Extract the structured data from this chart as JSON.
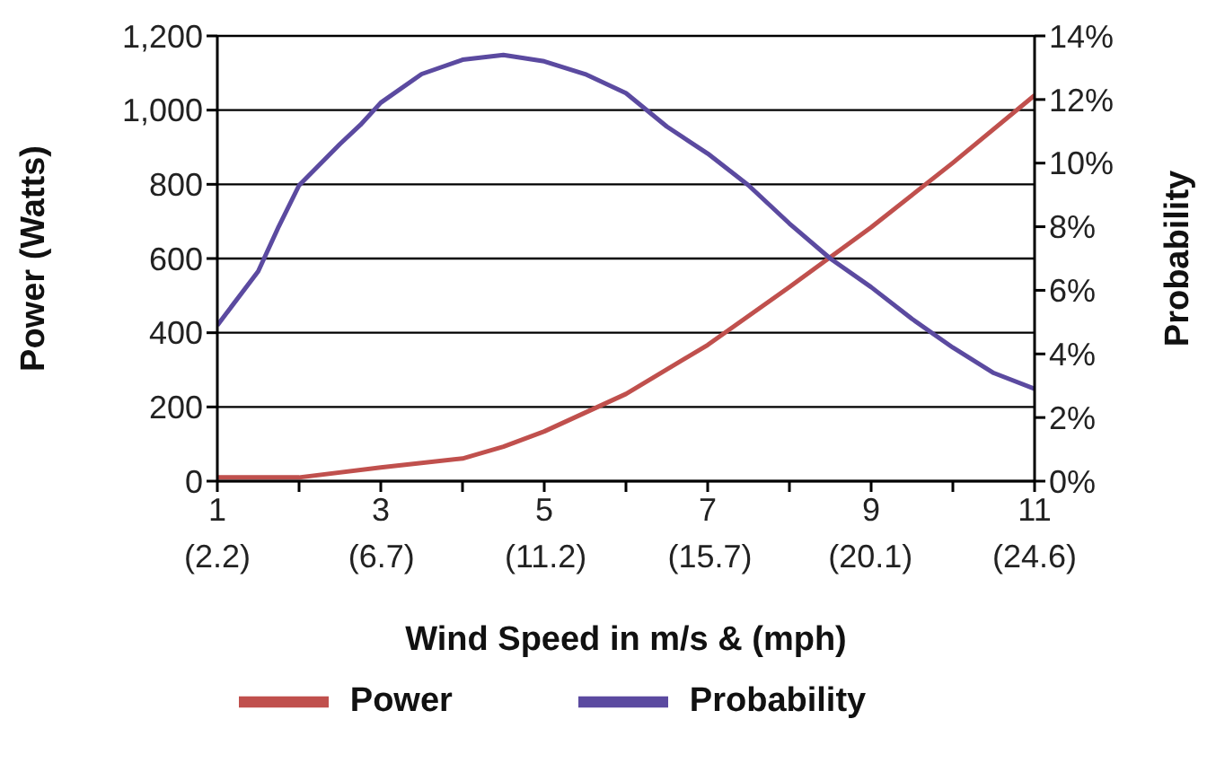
{
  "chart_data": {
    "type": "line",
    "xlabel": "Wind Speed  in m/s & (mph)",
    "ylabel": "Power (Watts)",
    "y2label": "Probability",
    "xlim": [
      1,
      11
    ],
    "xticks": [
      1,
      {
        "value": 2,
        "label": null
      },
      3,
      {
        "value": 4,
        "label": null
      },
      5,
      {
        "value": 6,
        "label": null
      },
      7,
      {
        "value": 8,
        "label": null
      },
      9,
      {
        "value": 10,
        "label": null
      },
      11
    ],
    "x2lim": [
      2.2,
      24.6
    ],
    "x2ticks": [
      {
        "value": 2.2,
        "label": "(2.2)"
      },
      {
        "value": 6.7,
        "label": "(6.7)"
      },
      {
        "value": 11.2,
        "label": "(11.2)"
      },
      {
        "value": 15.7,
        "label": "(15.7)"
      },
      {
        "value": 20.1,
        "label": "(20.1)"
      },
      {
        "value": 24.6,
        "label": "(24.6)"
      }
    ],
    "ylim": [
      0,
      1200
    ],
    "yticks": [
      {
        "value": 0,
        "label": "0"
      },
      {
        "value": 200,
        "label": "200"
      },
      {
        "value": 400,
        "label": "400"
      },
      {
        "value": 600,
        "label": "600"
      },
      {
        "value": 800,
        "label": "800"
      },
      {
        "value": 1000,
        "label": "1,000"
      },
      {
        "value": 1200,
        "label": "1,200"
      }
    ],
    "y2lim": [
      0,
      14
    ],
    "y2ticks": [
      {
        "value": 0,
        "label": "0%"
      },
      {
        "value": 2,
        "label": "2%"
      },
      {
        "value": 4,
        "label": "4%"
      },
      {
        "value": 6,
        "label": "6%"
      },
      {
        "value": 8,
        "label": "8%"
      },
      {
        "value": 10,
        "label": "10%"
      },
      {
        "value": 12,
        "label": "12%"
      },
      {
        "value": 14,
        "label": "14%"
      }
    ],
    "grid": "y",
    "legend": "bottom",
    "marker": "none",
    "series": [
      {
        "name": "Power",
        "color": "#c0504d",
        "x": [
          1,
          2,
          3,
          4,
          4.5,
          5,
          6,
          7,
          8,
          9,
          10,
          11
        ],
        "values": [
          10,
          10,
          37,
          61,
          93,
          134,
          235,
          367,
          523,
          684,
          858,
          1040
        ]
      },
      {
        "name": "Probability",
        "color": "#5b4aa0",
        "axis": "y2",
        "x": [
          1,
          1.5,
          1.75,
          2,
          2.5,
          2.75,
          3,
          3.5,
          4,
          4.5,
          5,
          5.5,
          6,
          6.5,
          7,
          7.5,
          8,
          8.5,
          9,
          9.5,
          10,
          10.5,
          11
        ],
        "values": [
          4.9,
          6.6,
          8.0,
          9.3,
          10.6,
          11.2,
          11.9,
          12.8,
          13.25,
          13.4,
          13.2,
          12.8,
          12.2,
          11.15,
          10.3,
          9.3,
          8.1,
          7.0,
          6.1,
          5.1,
          4.2,
          3.4,
          2.9
        ]
      }
    ]
  }
}
